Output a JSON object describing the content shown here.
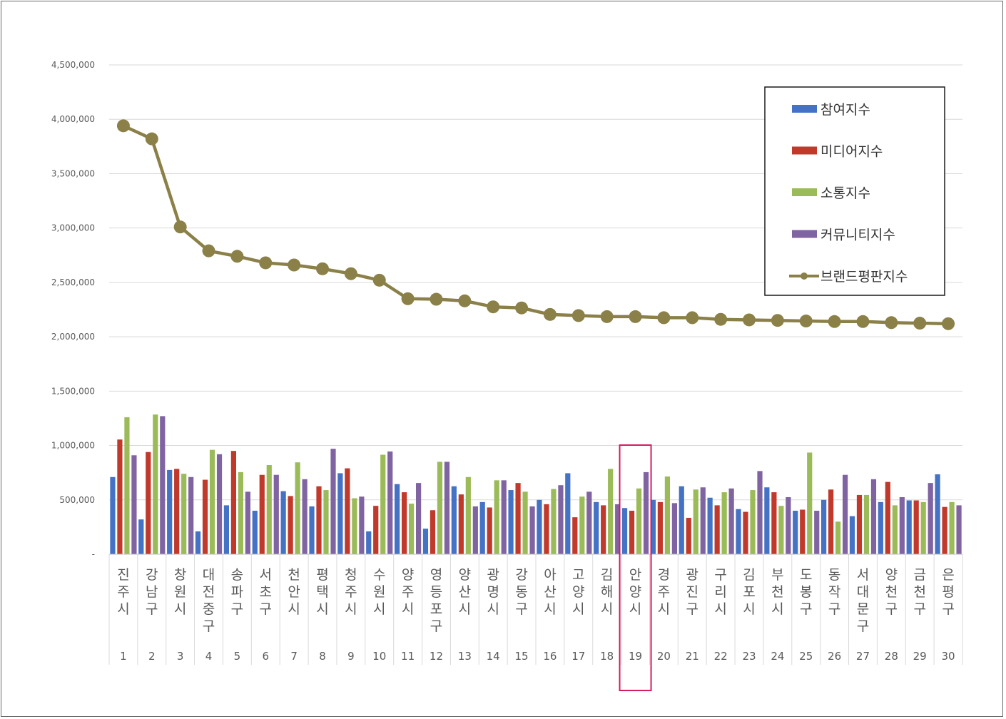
{
  "chart_data": {
    "type": "bar",
    "categories": [
      "진주시",
      "강남구",
      "창원시",
      "대전 중구",
      "송파구",
      "서초구",
      "천안시",
      "평택시",
      "청주시",
      "수원시",
      "양주시",
      "영등포구",
      "양산시",
      "광명시",
      "강동구",
      "아산시",
      "고양시",
      "김해시",
      "안양시",
      "경주시",
      "광진구",
      "구리시",
      "김포시",
      "부천시",
      "도봉구",
      "동작구",
      "서대문구",
      "양천구",
      "금천구",
      "은평구"
    ],
    "ranks": [
      "1",
      "2",
      "3",
      "4",
      "5",
      "6",
      "7",
      "8",
      "9",
      "10",
      "11",
      "12",
      "13",
      "14",
      "15",
      "16",
      "17",
      "18",
      "19",
      "20",
      "21",
      "22",
      "23",
      "24",
      "25",
      "26",
      "27",
      "28",
      "29",
      "30"
    ],
    "yticks": [
      "-",
      "500,000",
      "1,000,000",
      "1,500,000",
      "2,000,000",
      "2,500,000",
      "3,000,000",
      "3,500,000",
      "4,000,000",
      "4,500,000"
    ],
    "ylim": [
      0,
      4500000
    ],
    "grid": true,
    "legend_position": "top-right",
    "highlight_rank": "19",
    "series": [
      {
        "name": "참여지수",
        "type": "bar",
        "color": "#4472c4",
        "values": [
          710000,
          320000,
          775000,
          210000,
          450000,
          400000,
          580000,
          440000,
          745000,
          210000,
          645000,
          235000,
          625000,
          480000,
          590000,
          500000,
          745000,
          480000,
          425000,
          500000,
          625000,
          520000,
          415000,
          615000,
          400000,
          500000,
          350000,
          480000,
          495000,
          735000
        ]
      },
      {
        "name": "미디어지수",
        "type": "bar",
        "color": "#c0392b",
        "values": [
          1055000,
          940000,
          785000,
          685000,
          950000,
          730000,
          535000,
          625000,
          790000,
          445000,
          570000,
          405000,
          550000,
          430000,
          655000,
          460000,
          340000,
          450000,
          400000,
          480000,
          335000,
          450000,
          390000,
          570000,
          410000,
          595000,
          545000,
          665000,
          495000,
          435000
        ]
      },
      {
        "name": "소통지수",
        "type": "bar",
        "color": "#9bbb59",
        "values": [
          1260000,
          1285000,
          740000,
          960000,
          755000,
          820000,
          845000,
          590000,
          515000,
          915000,
          465000,
          850000,
          710000,
          680000,
          575000,
          600000,
          530000,
          785000,
          605000,
          715000,
          595000,
          570000,
          590000,
          445000,
          935000,
          300000,
          545000,
          450000,
          480000,
          480000
        ]
      },
      {
        "name": "커뮤니티지수",
        "type": "bar",
        "color": "#8064a2",
        "values": [
          910000,
          1270000,
          710000,
          920000,
          575000,
          730000,
          690000,
          970000,
          530000,
          945000,
          655000,
          850000,
          440000,
          680000,
          440000,
          635000,
          575000,
          460000,
          755000,
          470000,
          615000,
          605000,
          765000,
          525000,
          400000,
          730000,
          690000,
          525000,
          655000,
          450000
        ]
      },
      {
        "name": "브랜드평판지수",
        "type": "line",
        "color": "#8b8048",
        "values": [
          3940000,
          3820000,
          3010000,
          2790000,
          2740000,
          2680000,
          2660000,
          2625000,
          2580000,
          2520000,
          2350000,
          2345000,
          2330000,
          2275000,
          2265000,
          2205000,
          2195000,
          2185000,
          2185000,
          2175000,
          2175000,
          2160000,
          2155000,
          2150000,
          2145000,
          2140000,
          2140000,
          2130000,
          2125000,
          2120000
        ]
      }
    ]
  }
}
